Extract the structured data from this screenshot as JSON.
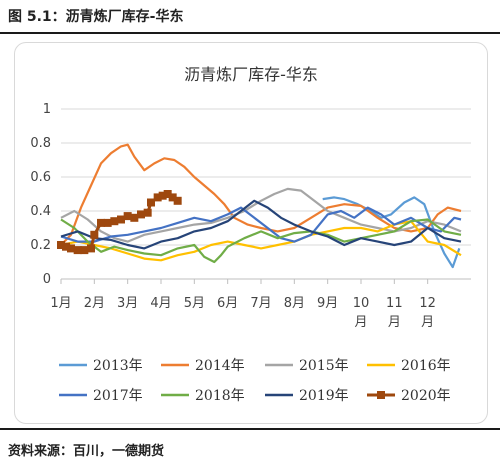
{
  "figure_title": "图 5.1：沥青炼厂库存-华东",
  "source": "资料来源：百川，一德期货",
  "chart_data": {
    "type": "line",
    "title": "沥青炼厂库存-华东",
    "xlabel": "",
    "ylabel": "",
    "ylim": [
      0,
      1
    ],
    "yticks": [
      "0",
      "0.2",
      "0.4",
      "0.6",
      "0.8",
      "1"
    ],
    "yticks_values": [
      0,
      0.2,
      0.4,
      0.6,
      0.8,
      1
    ],
    "xlim": [
      1,
      13.3
    ],
    "month_ticks": [
      {
        "value": 1,
        "line1": "1月",
        "line2": ""
      },
      {
        "value": 2,
        "line1": "2月",
        "line2": ""
      },
      {
        "value": 3,
        "line1": "3月",
        "line2": ""
      },
      {
        "value": 4,
        "line1": "4月",
        "line2": ""
      },
      {
        "value": 5,
        "line1": "5月",
        "line2": ""
      },
      {
        "value": 6,
        "line1": "6月",
        "line2": ""
      },
      {
        "value": 7,
        "line1": "7月",
        "line2": ""
      },
      {
        "value": 8,
        "line1": "8月",
        "line2": ""
      },
      {
        "value": 9,
        "line1": "9月",
        "line2": ""
      },
      {
        "value": 10,
        "line1": "10",
        "line2": "月"
      },
      {
        "value": 11,
        "line1": "11",
        "line2": "月"
      },
      {
        "value": 12,
        "line1": "12",
        "line2": "月"
      }
    ],
    "grid": "horizontal",
    "legend_position": "bottom",
    "series": [
      {
        "name": "2013年",
        "color": "#5B9BD5",
        "marker": "none",
        "points": [
          [
            8.85,
            0.47
          ],
          [
            9.2,
            0.48
          ],
          [
            9.5,
            0.47
          ],
          [
            9.9,
            0.44
          ],
          [
            10.3,
            0.4
          ],
          [
            10.6,
            0.36
          ],
          [
            10.9,
            0.38
          ],
          [
            11.3,
            0.45
          ],
          [
            11.6,
            0.48
          ],
          [
            11.9,
            0.44
          ],
          [
            12.2,
            0.28
          ],
          [
            12.5,
            0.15
          ],
          [
            12.75,
            0.07
          ],
          [
            12.95,
            0.18
          ]
        ]
      },
      {
        "name": "2014年",
        "color": "#ED7D31",
        "marker": "none",
        "points": [
          [
            1.0,
            0.2
          ],
          [
            1.3,
            0.26
          ],
          [
            1.6,
            0.42
          ],
          [
            1.9,
            0.55
          ],
          [
            2.2,
            0.68
          ],
          [
            2.5,
            0.74
          ],
          [
            2.8,
            0.78
          ],
          [
            3.0,
            0.79
          ],
          [
            3.2,
            0.72
          ],
          [
            3.5,
            0.64
          ],
          [
            3.8,
            0.68
          ],
          [
            4.1,
            0.71
          ],
          [
            4.4,
            0.7
          ],
          [
            4.7,
            0.66
          ],
          [
            5.0,
            0.6
          ],
          [
            5.3,
            0.55
          ],
          [
            5.6,
            0.5
          ],
          [
            5.9,
            0.44
          ],
          [
            6.2,
            0.36
          ],
          [
            6.6,
            0.32
          ],
          [
            7.0,
            0.3
          ],
          [
            7.5,
            0.28
          ],
          [
            8.0,
            0.3
          ],
          [
            8.5,
            0.36
          ],
          [
            9.0,
            0.42
          ],
          [
            9.5,
            0.44
          ],
          [
            10.0,
            0.43
          ],
          [
            10.5,
            0.36
          ],
          [
            11.0,
            0.3
          ],
          [
            11.5,
            0.28
          ],
          [
            12.0,
            0.3
          ],
          [
            12.3,
            0.38
          ],
          [
            12.6,
            0.42
          ],
          [
            13.0,
            0.4
          ]
        ]
      },
      {
        "name": "2015年",
        "color": "#A5A5A5",
        "marker": "none",
        "points": [
          [
            1.0,
            0.36
          ],
          [
            1.4,
            0.4
          ],
          [
            1.8,
            0.35
          ],
          [
            2.2,
            0.28
          ],
          [
            2.6,
            0.24
          ],
          [
            3.0,
            0.22
          ],
          [
            3.5,
            0.26
          ],
          [
            4.0,
            0.28
          ],
          [
            4.5,
            0.3
          ],
          [
            5.0,
            0.32
          ],
          [
            5.5,
            0.33
          ],
          [
            6.0,
            0.36
          ],
          [
            6.5,
            0.4
          ],
          [
            7.0,
            0.46
          ],
          [
            7.4,
            0.5
          ],
          [
            7.8,
            0.53
          ],
          [
            8.2,
            0.52
          ],
          [
            8.6,
            0.46
          ],
          [
            9.0,
            0.4
          ],
          [
            9.5,
            0.36
          ],
          [
            10.0,
            0.32
          ],
          [
            10.5,
            0.3
          ],
          [
            11.0,
            0.28
          ],
          [
            11.5,
            0.3
          ],
          [
            12.0,
            0.34
          ],
          [
            12.5,
            0.32
          ],
          [
            13.0,
            0.28
          ]
        ]
      },
      {
        "name": "2016年",
        "color": "#FFC000",
        "marker": "none",
        "points": [
          [
            1.0,
            0.2
          ],
          [
            1.5,
            0.22
          ],
          [
            2.0,
            0.2
          ],
          [
            2.5,
            0.18
          ],
          [
            3.0,
            0.15
          ],
          [
            3.5,
            0.12
          ],
          [
            4.0,
            0.11
          ],
          [
            4.5,
            0.14
          ],
          [
            5.0,
            0.16
          ],
          [
            5.5,
            0.2
          ],
          [
            6.0,
            0.22
          ],
          [
            6.5,
            0.2
          ],
          [
            7.0,
            0.18
          ],
          [
            7.5,
            0.2
          ],
          [
            8.0,
            0.22
          ],
          [
            8.5,
            0.26
          ],
          [
            9.0,
            0.28
          ],
          [
            9.5,
            0.3
          ],
          [
            10.0,
            0.3
          ],
          [
            10.5,
            0.28
          ],
          [
            11.0,
            0.32
          ],
          [
            11.5,
            0.34
          ],
          [
            12.0,
            0.22
          ],
          [
            12.5,
            0.2
          ],
          [
            13.0,
            0.14
          ]
        ]
      },
      {
        "name": "2017年",
        "color": "#4472C4",
        "marker": "none",
        "points": [
          [
            1.0,
            0.25
          ],
          [
            1.5,
            0.22
          ],
          [
            2.0,
            0.22
          ],
          [
            2.5,
            0.25
          ],
          [
            3.0,
            0.26
          ],
          [
            3.5,
            0.28
          ],
          [
            4.0,
            0.3
          ],
          [
            4.5,
            0.33
          ],
          [
            5.0,
            0.36
          ],
          [
            5.5,
            0.34
          ],
          [
            6.0,
            0.38
          ],
          [
            6.4,
            0.42
          ],
          [
            6.8,
            0.36
          ],
          [
            7.2,
            0.3
          ],
          [
            7.6,
            0.24
          ],
          [
            8.0,
            0.22
          ],
          [
            8.5,
            0.26
          ],
          [
            9.0,
            0.38
          ],
          [
            9.4,
            0.4
          ],
          [
            9.8,
            0.36
          ],
          [
            10.2,
            0.42
          ],
          [
            10.6,
            0.38
          ],
          [
            11.0,
            0.32
          ],
          [
            11.5,
            0.36
          ],
          [
            12.0,
            0.3
          ],
          [
            12.4,
            0.28
          ],
          [
            12.8,
            0.36
          ],
          [
            13.0,
            0.35
          ]
        ]
      },
      {
        "name": "2018年",
        "color": "#70AD47",
        "marker": "none",
        "points": [
          [
            1.0,
            0.35
          ],
          [
            1.4,
            0.3
          ],
          [
            1.8,
            0.22
          ],
          [
            2.2,
            0.16
          ],
          [
            2.6,
            0.19
          ],
          [
            3.0,
            0.17
          ],
          [
            3.5,
            0.15
          ],
          [
            4.0,
            0.14
          ],
          [
            4.5,
            0.18
          ],
          [
            5.0,
            0.2
          ],
          [
            5.3,
            0.13
          ],
          [
            5.6,
            0.1
          ],
          [
            5.8,
            0.14
          ],
          [
            6.0,
            0.19
          ],
          [
            6.5,
            0.24
          ],
          [
            7.0,
            0.28
          ],
          [
            7.5,
            0.24
          ],
          [
            8.0,
            0.27
          ],
          [
            8.5,
            0.28
          ],
          [
            9.0,
            0.26
          ],
          [
            9.5,
            0.22
          ],
          [
            10.0,
            0.24
          ],
          [
            10.5,
            0.26
          ],
          [
            11.0,
            0.28
          ],
          [
            11.5,
            0.34
          ],
          [
            12.0,
            0.35
          ],
          [
            12.5,
            0.28
          ],
          [
            13.0,
            0.26
          ]
        ]
      },
      {
        "name": "2019年",
        "color": "#264478",
        "marker": "none",
        "points": [
          [
            1.0,
            0.25
          ],
          [
            1.5,
            0.28
          ],
          [
            2.0,
            0.24
          ],
          [
            2.5,
            0.23
          ],
          [
            3.0,
            0.2
          ],
          [
            3.5,
            0.18
          ],
          [
            4.0,
            0.22
          ],
          [
            4.5,
            0.24
          ],
          [
            5.0,
            0.28
          ],
          [
            5.5,
            0.3
          ],
          [
            6.0,
            0.34
          ],
          [
            6.4,
            0.4
          ],
          [
            6.8,
            0.46
          ],
          [
            7.2,
            0.42
          ],
          [
            7.6,
            0.36
          ],
          [
            8.0,
            0.32
          ],
          [
            8.5,
            0.28
          ],
          [
            9.0,
            0.25
          ],
          [
            9.5,
            0.2
          ],
          [
            10.0,
            0.24
          ],
          [
            10.5,
            0.22
          ],
          [
            11.0,
            0.2
          ],
          [
            11.5,
            0.22
          ],
          [
            12.0,
            0.3
          ],
          [
            12.5,
            0.24
          ],
          [
            13.0,
            0.22
          ]
        ]
      },
      {
        "name": "2020年",
        "color": "#9E480E",
        "marker": "square",
        "points": [
          [
            1.0,
            0.2
          ],
          [
            1.15,
            0.19
          ],
          [
            1.3,
            0.18
          ],
          [
            1.5,
            0.17
          ],
          [
            1.7,
            0.17
          ],
          [
            1.9,
            0.18
          ],
          [
            2.0,
            0.26
          ],
          [
            2.2,
            0.33
          ],
          [
            2.4,
            0.33
          ],
          [
            2.6,
            0.34
          ],
          [
            2.8,
            0.35
          ],
          [
            3.0,
            0.37
          ],
          [
            3.2,
            0.36
          ],
          [
            3.4,
            0.38
          ],
          [
            3.6,
            0.39
          ],
          [
            3.7,
            0.45
          ],
          [
            3.9,
            0.48
          ],
          [
            4.05,
            0.49
          ],
          [
            4.2,
            0.5
          ],
          [
            4.35,
            0.48
          ],
          [
            4.5,
            0.46
          ]
        ]
      }
    ]
  }
}
